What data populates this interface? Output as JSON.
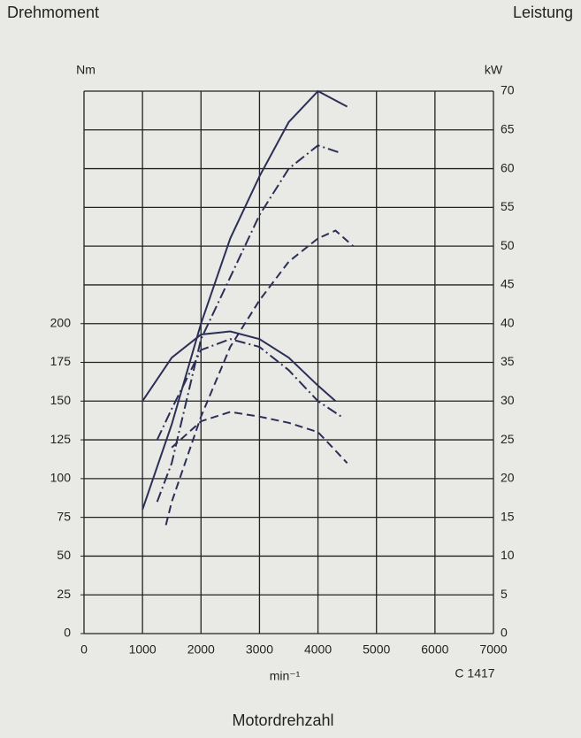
{
  "chart_data": {
    "type": "line",
    "title_left": "Drehmoment",
    "title_right": "Leistung",
    "y_unit": "Nm",
    "y2_unit": "kW",
    "x_unit": "min⁻¹",
    "code": "C 1417",
    "x_label": "Motordrehzahl",
    "xlim": [
      0,
      7000
    ],
    "xticks": [
      0,
      1000,
      2000,
      3000,
      4000,
      5000,
      6000,
      7000
    ],
    "ylim": [
      0,
      350
    ],
    "yticks": [
      0,
      25,
      50,
      75,
      100,
      125,
      150,
      175,
      200
    ],
    "y2lim": [
      0,
      70
    ],
    "y2ticks": [
      0,
      5,
      10,
      15,
      20,
      25,
      30,
      35,
      40,
      45,
      50,
      55,
      60,
      65,
      70
    ],
    "grid": true,
    "series": [
      {
        "color": "#2b2f55",
        "dash": "solid",
        "x": [
          1000,
          1500,
          2000,
          2500,
          3000,
          3500,
          4000,
          4300
        ],
        "values": [
          150,
          178,
          193,
          195,
          190,
          178,
          160,
          150
        ]
      },
      {
        "color": "#2b2f55",
        "dash": "dashdot",
        "x": [
          1250,
          1500,
          2000,
          2500,
          3000,
          3500,
          4000,
          4400
        ],
        "values": [
          125,
          145,
          183,
          190,
          185,
          170,
          150,
          140
        ]
      },
      {
        "color": "#2b2f55",
        "dash": "dash",
        "x": [
          1500,
          2000,
          2500,
          3000,
          3500,
          4000,
          4500
        ],
        "values": [
          120,
          137,
          143,
          140,
          136,
          130,
          110
        ]
      },
      {
        "color": "#2b2f55",
        "dash": "solid",
        "axis": "y2",
        "x": [
          1000,
          1500,
          2000,
          2500,
          3000,
          3500,
          4000,
          4500
        ],
        "values": [
          16,
          27,
          40,
          51,
          59,
          66,
          70,
          68
        ]
      },
      {
        "color": "#2b2f55",
        "dash": "dashdot",
        "axis": "y2",
        "x": [
          1250,
          1500,
          2000,
          2500,
          3000,
          3500,
          4000,
          4400
        ],
        "values": [
          17,
          22,
          38,
          46,
          54,
          60,
          63,
          62
        ]
      },
      {
        "color": "#2b2f55",
        "dash": "dash",
        "axis": "y2",
        "x": [
          1400,
          1500,
          2000,
          2500,
          3000,
          3500,
          4000,
          4300,
          4600
        ],
        "values": [
          14,
          17,
          28,
          37,
          43,
          48,
          51,
          52,
          50
        ]
      }
    ]
  }
}
